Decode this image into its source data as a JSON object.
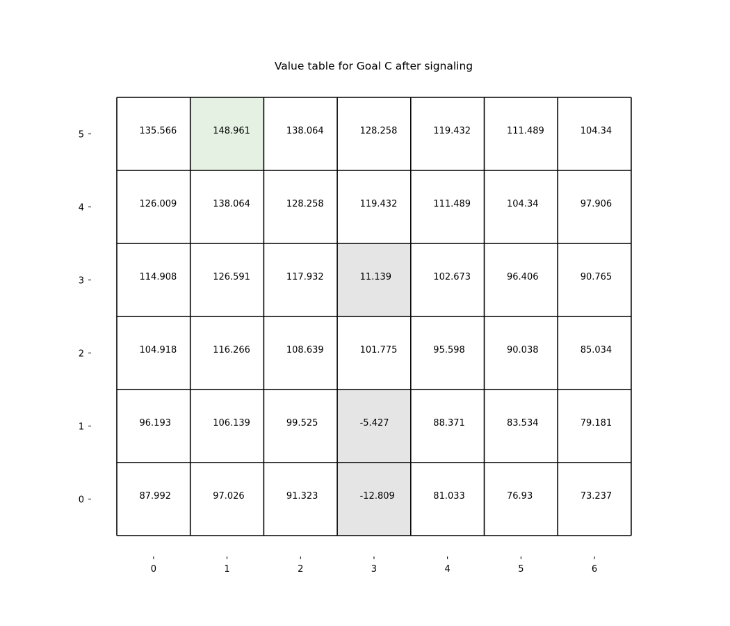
{
  "chart_data": {
    "type": "heatmap",
    "title": "Value table for Goal C after signaling",
    "x_ticks": [
      "0",
      "1",
      "2",
      "3",
      "4",
      "5",
      "6"
    ],
    "y_ticks": [
      "0",
      "1",
      "2",
      "3",
      "4",
      "5"
    ],
    "rows_top_to_bottom": [
      {
        "y": "5",
        "values": [
          "135.566",
          "148.961",
          "138.064",
          "128.258",
          "119.432",
          "111.489",
          "104.34"
        ]
      },
      {
        "y": "4",
        "values": [
          "126.009",
          "138.064",
          "128.258",
          "119.432",
          "111.489",
          "104.34",
          "97.906"
        ]
      },
      {
        "y": "3",
        "values": [
          "114.908",
          "126.591",
          "117.932",
          "11.139",
          "102.673",
          "96.406",
          "90.765"
        ]
      },
      {
        "y": "2",
        "values": [
          "104.918",
          "116.266",
          "108.639",
          "101.775",
          "95.598",
          "90.038",
          "85.034"
        ]
      },
      {
        "y": "1",
        "values": [
          "96.193",
          "106.139",
          "99.525",
          "-5.427",
          "88.371",
          "83.534",
          "79.181"
        ]
      },
      {
        "y": "0",
        "values": [
          "87.992",
          "97.026",
          "91.323",
          "-12.809",
          "81.033",
          "76.93",
          "73.237"
        ]
      }
    ],
    "highlighted_cells": [
      {
        "x": 1,
        "y": 5,
        "kind": "goal"
      },
      {
        "x": 3,
        "y": 3,
        "kind": "obstacle"
      },
      {
        "x": 3,
        "y": 1,
        "kind": "obstacle"
      },
      {
        "x": 3,
        "y": 0,
        "kind": "obstacle"
      }
    ],
    "colors": {
      "goal": "#e5f1e3",
      "obstacle": "#e5e5e5",
      "default": "#ffffff",
      "grid_line": "#000000"
    },
    "grid": true
  }
}
